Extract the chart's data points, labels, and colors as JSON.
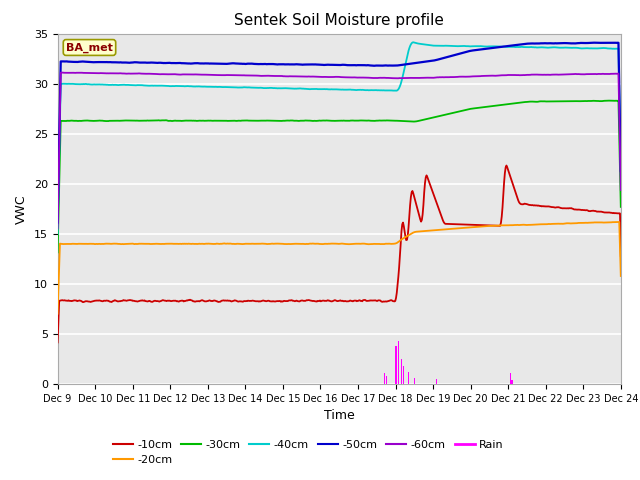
{
  "title": "Sentek Soil Moisture profile",
  "xlabel": "Time",
  "ylabel": "VWC",
  "legend_label": "BA_met",
  "ylim": [
    0,
    35
  ],
  "xlim": [
    0,
    15
  ],
  "tick_labels": [
    "Dec 9",
    "Dec 10",
    "Dec 11",
    "Dec 12",
    "Dec 13",
    "Dec 14",
    "Dec 15",
    "Dec 16",
    "Dec 17",
    "Dec 18",
    "Dec 19",
    "Dec 20",
    "Dec 21",
    "Dec 22",
    "Dec 23",
    "Dec 24"
  ],
  "colors": {
    "10cm": "#cc0000",
    "20cm": "#ff9900",
    "30cm": "#00bb00",
    "40cm": "#00cccc",
    "50cm": "#0000cc",
    "60cm": "#9900cc",
    "rain": "#ff00ff"
  },
  "bg_color": "#e8e8e8",
  "fig_bg": "#ffffff",
  "grid_color": "#ffffff"
}
